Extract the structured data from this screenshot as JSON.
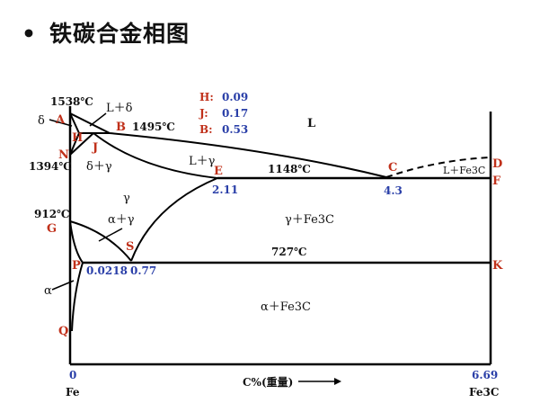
{
  "slide": {
    "bullet": "•",
    "title": "铁碳合金相图"
  },
  "legend": {
    "H_key": "H:",
    "H_val": "0.09",
    "J_key": "J:",
    "J_val": "0.17",
    "B_key": "B:",
    "B_val": "0.53"
  },
  "points": {
    "A": "A",
    "B": "B",
    "H": "H",
    "J": "J",
    "N": "N",
    "E": "E",
    "C": "C",
    "D": "D",
    "F": "F",
    "G": "G",
    "S": "S",
    "P": "P",
    "K": "K",
    "Q": "Q"
  },
  "temps": {
    "t1538": "1538℃",
    "t1495": "1495℃",
    "t1394": "1394℃",
    "t1148": "1148℃",
    "t912": "912℃",
    "t727": "727℃"
  },
  "compositions": {
    "E": "2.11",
    "C": "4.3",
    "P": "0.0218",
    "S": "0.77",
    "start": "0",
    "end": "6.69"
  },
  "phases": {
    "L_delta": "L＋δ",
    "L": "L",
    "delta": "δ",
    "delta_gamma": "δ＋γ",
    "L_gamma": "L＋γ",
    "L_Fe3C": "L＋Fe3C",
    "gamma": "γ",
    "alpha_gamma": "α＋γ",
    "gamma_Fe3C": "γ＋Fe3C",
    "alpha": "α",
    "alpha_Fe3C": "α＋Fe3C"
  },
  "axis": {
    "xlabel": "C%(重量)",
    "left_end": "Fe",
    "right_end": "Fe3C"
  },
  "colors": {
    "point_label": "#c0301a",
    "value_label": "#2a3fa8",
    "line": "#000000"
  }
}
